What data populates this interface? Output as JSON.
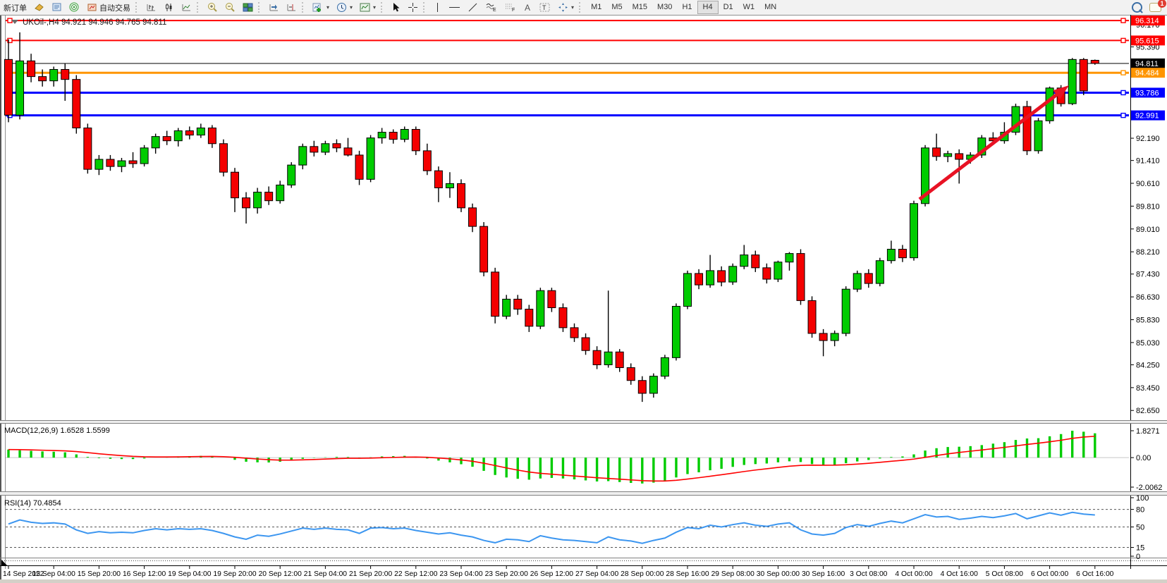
{
  "toolbar": {
    "new_order": "新订单",
    "auto_trading": "自动交易",
    "timeframes": [
      "M1",
      "M5",
      "M15",
      "M30",
      "H1",
      "H4",
      "D1",
      "W1",
      "MN"
    ],
    "active_timeframe": "H4",
    "notification_count": "1"
  },
  "chart": {
    "symbol_period": "UKOil-,H4",
    "ohlc": "94.921 94.946 94.765 94.811"
  },
  "chart_data": {
    "type": "candlestick",
    "symbol": "UKOil",
    "period": "H4",
    "title": "UKOil-,H4 94.921 94.946 94.765 94.811",
    "ohlc_display": {
      "open": "94.921",
      "high": "94.946",
      "low": "94.765",
      "close": "94.811"
    },
    "ylim": [
      82.31,
      96.49
    ],
    "grid": false,
    "bull_color": "#00cc00",
    "bear_color": "#f40000",
    "candles": [
      [
        94.95,
        95.65,
        92.75,
        93.0
      ],
      [
        93.0,
        95.9,
        92.85,
        94.9
      ],
      [
        94.9,
        95.15,
        94.15,
        94.35
      ],
      [
        94.35,
        94.6,
        94.0,
        94.2
      ],
      [
        94.2,
        94.7,
        94.0,
        94.6
      ],
      [
        94.6,
        94.8,
        93.5,
        94.25
      ],
      [
        94.25,
        94.4,
        92.35,
        92.55
      ],
      [
        92.55,
        92.7,
        90.95,
        91.1
      ],
      [
        91.1,
        91.6,
        90.9,
        91.45
      ],
      [
        91.45,
        91.6,
        91.05,
        91.2
      ],
      [
        91.2,
        91.5,
        91.0,
        91.4
      ],
      [
        91.4,
        91.7,
        91.15,
        91.3
      ],
      [
        91.3,
        91.95,
        91.2,
        91.85
      ],
      [
        91.85,
        92.35,
        91.65,
        92.25
      ],
      [
        92.25,
        92.45,
        91.95,
        92.1
      ],
      [
        92.1,
        92.55,
        91.9,
        92.45
      ],
      [
        92.45,
        92.6,
        92.15,
        92.3
      ],
      [
        92.3,
        92.7,
        92.2,
        92.55
      ],
      [
        92.55,
        92.65,
        91.85,
        92.0
      ],
      [
        92.0,
        92.15,
        90.85,
        91.0
      ],
      [
        91.0,
        91.15,
        89.6,
        90.1
      ],
      [
        90.1,
        90.3,
        89.2,
        89.75
      ],
      [
        89.75,
        90.45,
        89.55,
        90.3
      ],
      [
        90.3,
        90.5,
        89.85,
        90.0
      ],
      [
        90.0,
        90.7,
        89.9,
        90.55
      ],
      [
        90.55,
        91.35,
        90.45,
        91.25
      ],
      [
        91.25,
        92.0,
        91.1,
        91.9
      ],
      [
        91.9,
        92.1,
        91.55,
        91.7
      ],
      [
        91.7,
        92.1,
        91.6,
        92.0
      ],
      [
        92.0,
        92.15,
        91.7,
        91.85
      ],
      [
        91.85,
        92.2,
        91.55,
        91.6
      ],
      [
        91.6,
        91.75,
        90.55,
        90.75
      ],
      [
        90.75,
        92.3,
        90.65,
        92.2
      ],
      [
        92.2,
        92.55,
        92.0,
        92.4
      ],
      [
        92.4,
        92.5,
        92.0,
        92.15
      ],
      [
        92.15,
        92.6,
        92.05,
        92.5
      ],
      [
        92.5,
        92.6,
        91.6,
        91.75
      ],
      [
        91.75,
        92.0,
        90.9,
        91.05
      ],
      [
        91.05,
        91.2,
        89.95,
        90.45
      ],
      [
        90.45,
        91.0,
        90.1,
        90.6
      ],
      [
        90.6,
        90.75,
        89.6,
        89.75
      ],
      [
        89.75,
        89.9,
        88.9,
        89.1
      ],
      [
        89.1,
        89.25,
        87.35,
        87.5
      ],
      [
        87.5,
        87.65,
        85.7,
        85.95
      ],
      [
        85.95,
        86.7,
        85.85,
        86.55
      ],
      [
        86.55,
        86.7,
        86.0,
        86.2
      ],
      [
        86.2,
        86.35,
        85.4,
        85.6
      ],
      [
        85.6,
        86.95,
        85.5,
        86.85
      ],
      [
        86.85,
        86.95,
        86.1,
        86.25
      ],
      [
        86.25,
        86.4,
        85.4,
        85.55
      ],
      [
        85.55,
        85.7,
        85.05,
        85.2
      ],
      [
        85.2,
        85.35,
        84.6,
        84.75
      ],
      [
        84.75,
        84.9,
        84.1,
        84.25
      ],
      [
        84.25,
        86.85,
        84.15,
        84.7
      ],
      [
        84.7,
        84.8,
        84.0,
        84.15
      ],
      [
        84.15,
        84.3,
        83.55,
        83.7
      ],
      [
        83.7,
        83.85,
        82.95,
        83.25
      ],
      [
        83.25,
        83.95,
        83.1,
        83.85
      ],
      [
        83.85,
        84.6,
        83.75,
        84.5
      ],
      [
        84.5,
        86.4,
        84.4,
        86.3
      ],
      [
        86.3,
        87.55,
        86.2,
        87.45
      ],
      [
        87.45,
        87.6,
        86.9,
        87.05
      ],
      [
        87.05,
        88.1,
        86.95,
        87.55
      ],
      [
        87.55,
        87.7,
        87.0,
        87.15
      ],
      [
        87.15,
        87.8,
        87.05,
        87.7
      ],
      [
        87.7,
        88.45,
        87.6,
        88.1
      ],
      [
        88.1,
        88.25,
        87.5,
        87.65
      ],
      [
        87.65,
        87.8,
        87.1,
        87.25
      ],
      [
        87.25,
        87.9,
        87.15,
        87.85
      ],
      [
        87.85,
        88.2,
        87.55,
        88.15
      ],
      [
        88.15,
        88.3,
        86.35,
        86.5
      ],
      [
        86.5,
        86.65,
        85.2,
        85.35
      ],
      [
        85.35,
        85.5,
        84.55,
        85.1
      ],
      [
        85.1,
        85.45,
        84.9,
        85.35
      ],
      [
        85.35,
        87.0,
        85.25,
        86.9
      ],
      [
        86.9,
        87.55,
        86.8,
        87.45
      ],
      [
        87.45,
        87.6,
        86.95,
        87.1
      ],
      [
        87.1,
        88.0,
        87.0,
        87.9
      ],
      [
        87.9,
        88.6,
        87.8,
        88.3
      ],
      [
        88.3,
        88.45,
        87.85,
        88.0
      ],
      [
        88.0,
        90.0,
        87.9,
        89.9
      ],
      [
        89.9,
        91.95,
        89.8,
        91.85
      ],
      [
        91.85,
        92.35,
        91.4,
        91.55
      ],
      [
        91.55,
        91.75,
        91.35,
        91.65
      ],
      [
        91.65,
        91.8,
        90.6,
        91.45
      ],
      [
        91.45,
        91.7,
        91.3,
        91.6
      ],
      [
        91.6,
        92.3,
        91.5,
        92.2
      ],
      [
        92.2,
        92.4,
        91.95,
        92.1
      ],
      [
        92.1,
        92.75,
        92.0,
        92.4
      ],
      [
        92.4,
        93.4,
        92.3,
        93.3
      ],
      [
        93.3,
        93.5,
        91.6,
        91.75
      ],
      [
        91.75,
        92.9,
        91.65,
        92.8
      ],
      [
        92.8,
        94.0,
        92.7,
        93.95
      ],
      [
        93.95,
        94.05,
        93.3,
        93.4
      ],
      [
        93.4,
        95.0,
        93.35,
        94.95
      ],
      [
        94.95,
        95.0,
        93.7,
        93.85
      ],
      [
        94.921,
        94.946,
        94.765,
        94.811
      ]
    ],
    "x_labels": [
      "14 Sep 2022",
      "15 Sep 04:00",
      "15 Sep 20:00",
      "16 Sep 12:00",
      "19 Sep 04:00",
      "19 Sep 20:00",
      "20 Sep 12:00",
      "21 Sep 04:00",
      "21 Sep 20:00",
      "22 Sep 12:00",
      "23 Sep 04:00",
      "23 Sep 20:00",
      "26 Sep 12:00",
      "27 Sep 04:00",
      "28 Sep 00:00",
      "28 Sep 16:00",
      "29 Sep 08:00",
      "30 Sep 00:00",
      "30 Sep 16:00",
      "3 Oct 08:00",
      "4 Oct 00:00",
      "4 Oct 16:00",
      "5 Oct 08:00",
      "6 Oct 00:00",
      "6 Oct 16:00"
    ],
    "y_ticks": [
      "96.170",
      "95.390",
      "92.190",
      "91.410",
      "90.610",
      "89.810",
      "89.010",
      "88.210",
      "87.430",
      "86.630",
      "85.830",
      "85.030",
      "84.250",
      "83.450",
      "82.650"
    ],
    "price_lines": [
      {
        "price": 96.314,
        "label": "96.314",
        "color": "#ff0000",
        "width": 2
      },
      {
        "price": 95.615,
        "label": "95.615",
        "color": "#ff0000",
        "width": 2
      },
      {
        "price": 94.811,
        "label": "94.811",
        "color": "#000000",
        "width": 1,
        "is_current": true
      },
      {
        "price": 94.484,
        "label": "94.484",
        "color": "#ff9500",
        "width": 3
      },
      {
        "price": 93.786,
        "label": "93.786",
        "color": "#0000ff",
        "width": 3
      },
      {
        "price": 92.991,
        "label": "92.991",
        "color": "#0000ff",
        "width": 3
      }
    ],
    "arrow": {
      "from_bar": 80.5,
      "from_price": 90.05,
      "to_bar": 93.3,
      "to_price": 93.92,
      "color": "#e81224"
    },
    "macd": {
      "label": "MACD(12,26,9)",
      "value_labels": "1.6528 1.5599",
      "main_value": 1.6528,
      "signal_value": 1.5599,
      "axis": [
        {
          "v": 1.8271,
          "label": "1.8271"
        },
        {
          "v": 0,
          "label": "0.00"
        },
        {
          "v": -2.0062,
          "label": "-2.0062"
        }
      ],
      "range": [
        -2.0062,
        1.8271
      ],
      "hist_color": "#00cc00",
      "signal_color": "#ff0000",
      "values": [
        0.55,
        0.5,
        0.46,
        0.42,
        0.4,
        0.36,
        0.22,
        0.05,
        -0.04,
        -0.08,
        -0.1,
        -0.1,
        -0.06,
        0.0,
        0.04,
        0.08,
        0.1,
        0.12,
        0.1,
        0.0,
        -0.15,
        -0.28,
        -0.32,
        -0.33,
        -0.28,
        -0.18,
        -0.08,
        -0.02,
        0.02,
        0.05,
        0.04,
        -0.04,
        0.02,
        0.08,
        0.1,
        0.12,
        0.06,
        -0.06,
        -0.2,
        -0.32,
        -0.45,
        -0.62,
        -0.9,
        -1.18,
        -1.35,
        -1.44,
        -1.5,
        -1.42,
        -1.38,
        -1.42,
        -1.48,
        -1.55,
        -1.62,
        -1.6,
        -1.66,
        -1.72,
        -1.76,
        -1.7,
        -1.58,
        -1.35,
        -1.12,
        -1.0,
        -0.86,
        -0.76,
        -0.63,
        -0.5,
        -0.44,
        -0.4,
        -0.32,
        -0.25,
        -0.3,
        -0.44,
        -0.54,
        -0.5,
        -0.38,
        -0.26,
        -0.16,
        -0.06,
        0.04,
        0.08,
        0.22,
        0.48,
        0.64,
        0.72,
        0.74,
        0.78,
        0.85,
        0.95,
        1.05,
        1.2,
        1.3,
        1.32,
        1.45,
        1.6,
        1.8271,
        1.76,
        1.6528
      ]
    },
    "rsi": {
      "label": "RSI(14)",
      "value_label": "70.4854",
      "current": 70.4854,
      "axis": [
        {
          "v": 100,
          "label": "100"
        },
        {
          "v": 80,
          "label": "80"
        },
        {
          "v": 50,
          "label": "50"
        },
        {
          "v": 15,
          "label": "15"
        },
        {
          "v": 0,
          "label": "0"
        }
      ],
      "levels": [
        80,
        50,
        15
      ],
      "range": [
        0,
        100
      ],
      "color": "#3c96f0",
      "values": [
        55,
        62,
        58,
        56,
        57,
        55,
        45,
        39,
        42,
        40,
        41,
        40,
        44,
        47,
        45,
        47,
        46,
        47,
        44,
        39,
        33,
        29,
        36,
        34,
        38,
        43,
        48,
        46,
        48,
        46,
        45,
        39,
        48,
        49,
        47,
        48,
        44,
        41,
        38,
        40,
        36,
        33,
        27,
        23,
        29,
        28,
        25,
        35,
        31,
        28,
        27,
        25,
        23,
        33,
        28,
        26,
        22,
        27,
        31,
        41,
        49,
        47,
        53,
        50,
        54,
        57,
        53,
        51,
        55,
        57,
        45,
        38,
        36,
        39,
        49,
        54,
        51,
        56,
        60,
        57,
        64,
        71,
        67,
        68,
        63,
        65,
        68,
        66,
        69,
        73,
        64,
        69,
        74,
        70,
        75,
        72,
        70.49
      ]
    }
  },
  "colors": {
    "accent_blue": "#0000ff",
    "accent_orange": "#ff9500",
    "accent_red": "#ff0000",
    "rsi_blue": "#3c96f0",
    "toolbar_bg": "#f2f2f2"
  }
}
